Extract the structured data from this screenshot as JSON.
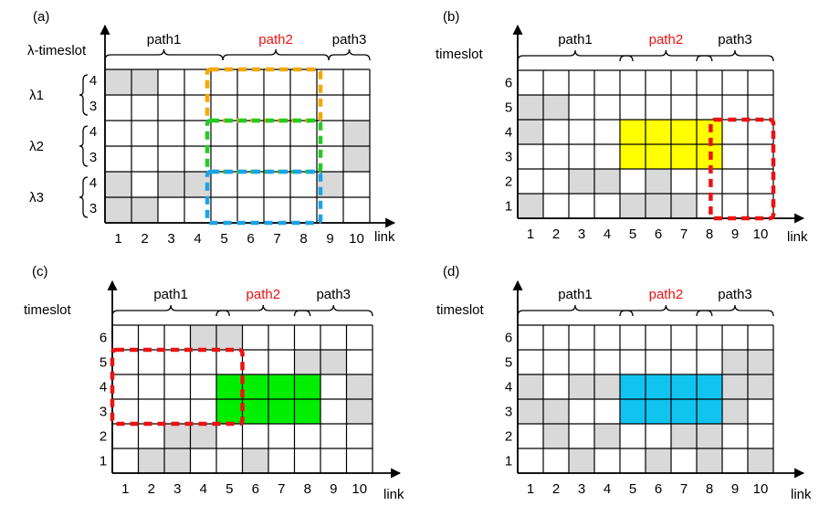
{
  "panels": [
    {
      "id": "a",
      "label": "(a)",
      "ylabel": "λ-timeslot",
      "xlabel": "link",
      "paths": [
        "path1",
        "path2",
        "path3"
      ],
      "columns": [
        "1",
        "2",
        "3",
        "4",
        "5",
        "6",
        "7",
        "8",
        "9",
        "10"
      ],
      "row_ticks": [
        "4",
        "3",
        "4",
        "3",
        "4",
        "3"
      ],
      "groups": [
        "λ1",
        "λ2",
        "λ3"
      ],
      "gray_cells": [
        [
          1,
          1
        ],
        [
          2,
          1
        ],
        [
          10,
          3
        ],
        [
          10,
          4
        ],
        [
          1,
          5
        ],
        [
          3,
          5
        ],
        [
          4,
          5
        ],
        [
          9,
          5
        ],
        [
          1,
          6
        ],
        [
          2,
          6
        ]
      ],
      "filled_blocks": [],
      "dashed_boxes": [
        {
          "color": "#f5a800",
          "link_from": 5,
          "link_to": 8,
          "rows": "λ1 4-3"
        },
        {
          "color": "#22cc22",
          "link_from": 5,
          "link_to": 8,
          "rows": "λ2 4-3"
        },
        {
          "color": "#1aa3e8",
          "link_from": 5,
          "link_to": 8,
          "rows": "λ3 4-3"
        }
      ]
    },
    {
      "id": "b",
      "label": "(b)",
      "ylabel": "timeslot",
      "xlabel": "link",
      "paths": [
        "path1",
        "path2",
        "path3"
      ],
      "columns": [
        "1",
        "2",
        "3",
        "4",
        "5",
        "6",
        "7",
        "8",
        "9",
        "10"
      ],
      "row_ticks": [
        "6",
        "5",
        "4",
        "3",
        "2",
        "1"
      ],
      "gray_cells": [
        [
          1,
          2
        ],
        [
          2,
          2
        ],
        [
          1,
          3
        ],
        [
          3,
          5
        ],
        [
          4,
          5
        ],
        [
          6,
          5
        ],
        [
          1,
          6
        ],
        [
          5,
          6
        ],
        [
          6,
          6
        ],
        [
          7,
          6
        ]
      ],
      "filled_blocks": [
        {
          "color": "#ffff00",
          "link_from": 5,
          "link_to": 8,
          "slot_from": 3,
          "slot_to": 4
        }
      ],
      "dashed_boxes": [
        {
          "color": "#ee1111",
          "link_from": 8,
          "link_to": 10,
          "slot_from": 1,
          "slot_to": 4
        }
      ]
    },
    {
      "id": "c",
      "label": "(c)",
      "ylabel": "timeslot",
      "xlabel": "link",
      "paths": [
        "path1",
        "path2",
        "path3"
      ],
      "columns": [
        "1",
        "2",
        "3",
        "4",
        "5",
        "6",
        "7",
        "8",
        "9",
        "10"
      ],
      "row_ticks": [
        "6",
        "5",
        "4",
        "3",
        "2",
        "1"
      ],
      "gray_cells": [
        [
          4,
          1
        ],
        [
          5,
          1
        ],
        [
          8,
          2
        ],
        [
          9,
          2
        ],
        [
          10,
          3
        ],
        [
          10,
          4
        ],
        [
          3,
          5
        ],
        [
          4,
          5
        ],
        [
          2,
          6
        ],
        [
          3,
          6
        ],
        [
          6,
          6
        ]
      ],
      "filled_blocks": [
        {
          "color": "#00ee00",
          "link_from": 5,
          "link_to": 8,
          "slot_from": 3,
          "slot_to": 4
        }
      ],
      "dashed_boxes": [
        {
          "color": "#ee1111",
          "link_from": 1,
          "link_to": 5,
          "slot_from": 3,
          "slot_to": 5
        }
      ]
    },
    {
      "id": "d",
      "label": "(d)",
      "ylabel": "timeslot",
      "xlabel": "link",
      "paths": [
        "path1",
        "path2",
        "path3"
      ],
      "columns": [
        "1",
        "2",
        "3",
        "4",
        "5",
        "6",
        "7",
        "8",
        "9",
        "10"
      ],
      "row_ticks": [
        "6",
        "5",
        "4",
        "3",
        "2",
        "1"
      ],
      "gray_cells": [
        [
          9,
          2
        ],
        [
          10,
          2
        ],
        [
          1,
          3
        ],
        [
          3,
          3
        ],
        [
          4,
          3
        ],
        [
          9,
          3
        ],
        [
          10,
          3
        ],
        [
          1,
          4
        ],
        [
          2,
          4
        ],
        [
          9,
          4
        ],
        [
          2,
          5
        ],
        [
          4,
          5
        ],
        [
          7,
          5
        ],
        [
          8,
          5
        ],
        [
          3,
          6
        ],
        [
          6,
          6
        ],
        [
          8,
          6
        ],
        [
          10,
          6
        ]
      ],
      "filled_blocks": [
        {
          "color": "#11c4f0",
          "link_from": 5,
          "link_to": 8,
          "slot_from": 3,
          "slot_to": 4
        }
      ],
      "dashed_boxes": []
    }
  ],
  "colors": {
    "path2_label": "#ee1111",
    "gray_cell": "#d9d9d9",
    "grid_line": "#000000"
  }
}
